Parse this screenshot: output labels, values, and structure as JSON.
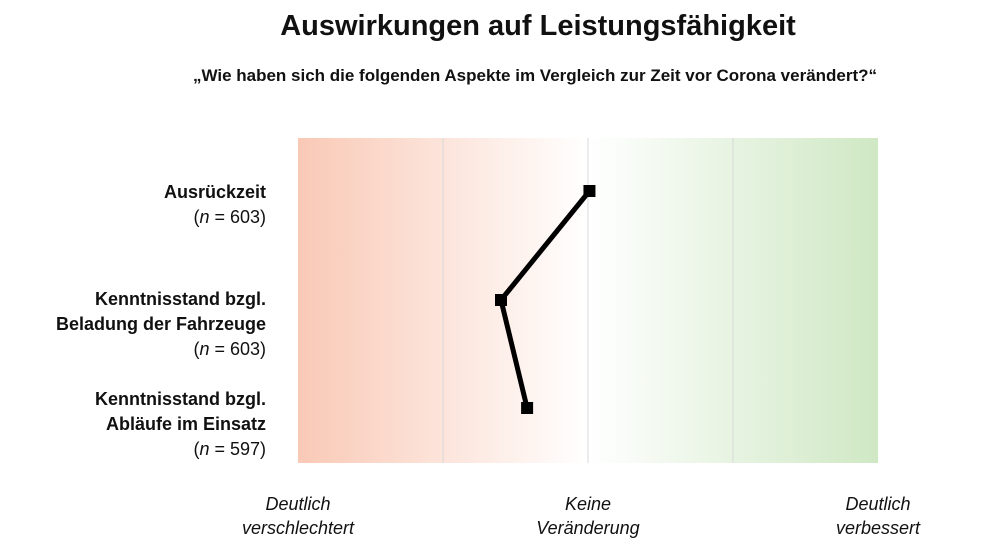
{
  "title": "Auswirkungen auf Leistungsfähigkeit",
  "subtitle": "„Wie haben sich die folgenden Aspekte im Vergleich zur Zeit vor Corona verändert?“",
  "chart_data": {
    "type": "line",
    "orientation": "horizontal",
    "categories": [
      {
        "label_lines": [
          "Ausrückzeit"
        ],
        "n_text": "603"
      },
      {
        "label_lines": [
          "Kenntnisstand bzgl.",
          "Beladung der Fahrzeuge"
        ],
        "n_text": "603"
      },
      {
        "label_lines": [
          "Kenntnisstand bzgl.",
          "Abläufe im Einsatz"
        ],
        "n_text": "597"
      }
    ],
    "n_prefix": "n",
    "n_equals": " = ",
    "values": [
      0.01,
      -0.6,
      -0.42
    ],
    "xlim": [
      -2,
      2
    ],
    "x_tick_labels": [
      {
        "value": -2,
        "lines": [
          "Deutlich",
          "verschlechtert"
        ]
      },
      {
        "value": 0,
        "lines": [
          "Keine",
          "Veränderung"
        ]
      },
      {
        "value": 2,
        "lines": [
          "Deutlich",
          "verbessert"
        ]
      }
    ],
    "gridlines_at": [
      -1,
      0,
      1
    ],
    "background_gradient": {
      "negative_color": "#f9c9b6",
      "neutral_color": "#ffffff",
      "positive_color": "#cfe8c4"
    },
    "line_color": "#000000",
    "marker": "square"
  }
}
